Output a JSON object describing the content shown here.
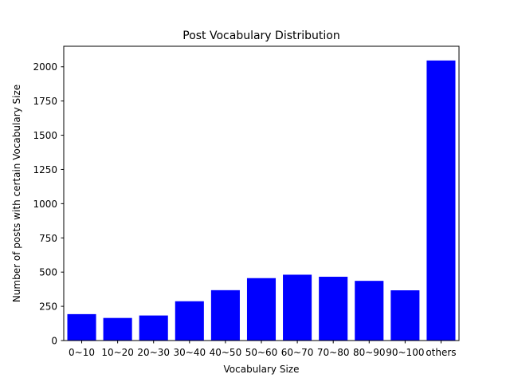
{
  "chart_data": {
    "type": "bar",
    "title": "Post Vocabulary Distribution",
    "xlabel": "Vocabulary Size",
    "ylabel": "Number of posts with certain Vocabulary Size",
    "categories": [
      "0~10",
      "10~20",
      "20~30",
      "30~40",
      "40~50",
      "50~60",
      "60~70",
      "70~80",
      "80~90",
      "90~100",
      "others"
    ],
    "values": [
      193,
      165,
      183,
      287,
      368,
      456,
      481,
      466,
      436,
      367,
      2046
    ],
    "ylim": [
      0,
      2150
    ],
    "yticks": [
      0,
      250,
      500,
      750,
      1000,
      1250,
      1500,
      1750,
      2000
    ],
    "grid": false,
    "bar_color": "#0000ff"
  }
}
